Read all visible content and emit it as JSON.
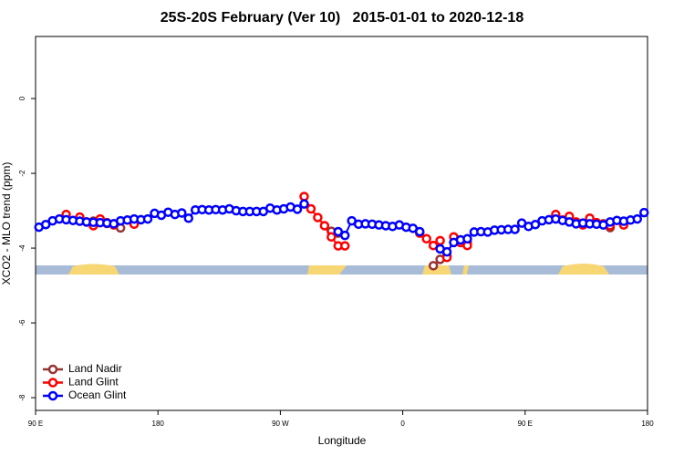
{
  "chart_data": {
    "type": "line",
    "title": "25S-20S February (Ver 10)   2015-01-01 to 2020-12-18",
    "x_label": "Longitude",
    "y_label": "XCO2 - MLO trend (ppm)",
    "xlim": [
      90,
      540
    ],
    "ylim": [
      -8.34,
      1.66
    ],
    "xticks": [
      {
        "value": 90,
        "label": "90 E"
      },
      180,
      {
        "value": 270,
        "label": "90 W"
      },
      {
        "value": 360,
        "label": "0"
      },
      {
        "value": 450,
        "label": "90 E"
      },
      {
        "value": 540,
        "label": "180"
      }
    ],
    "yticks": [
      0,
      -2,
      -4,
      -6,
      -8
    ],
    "legend": "lower left",
    "x": [
      92.5,
      97.5,
      102.5,
      107.5,
      112.5,
      117.5,
      122.5,
      127.5,
      132.5,
      137.5,
      142.5,
      147.5,
      152.5,
      157.5,
      162.5,
      167.5,
      172.5,
      177.5,
      182.5,
      187.5,
      192.5,
      197.5,
      202.5,
      207.5,
      212.5,
      217.5,
      222.5,
      227.5,
      232.5,
      237.5,
      242.5,
      247.5,
      252.5,
      257.5,
      262.5,
      267.5,
      272.5,
      277.5,
      282.5,
      287.5,
      292.5,
      297.5,
      302.5,
      307.5,
      312.5,
      317.5,
      322.5,
      327.5,
      332.5,
      337.5,
      342.5,
      347.5,
      352.5,
      357.5,
      362.5,
      367.5,
      372.5,
      377.5,
      382.5,
      387.5,
      392.5,
      397.5,
      402.5,
      407.5,
      412.5,
      417.5,
      422.5,
      427.5,
      432.5,
      437.5,
      442.5,
      447.5,
      452.5,
      457.5,
      462.5,
      467.5,
      472.5,
      477.5,
      482.5,
      487.5,
      492.5,
      497.5,
      502.5,
      507.5,
      512.5,
      517.5,
      522.5,
      527.5,
      532.5,
      537.5
    ],
    "series": [
      {
        "name": "Land Nadir",
        "color": "#993333",
        "values": [
          null,
          null,
          null,
          null,
          null,
          null,
          null,
          null,
          -3.28,
          -3.3,
          -3.34,
          -3.35,
          -3.46,
          null,
          null,
          null,
          null,
          null,
          null,
          null,
          null,
          null,
          null,
          null,
          null,
          null,
          null,
          null,
          null,
          null,
          null,
          null,
          null,
          null,
          null,
          null,
          null,
          null,
          null,
          null,
          null,
          null,
          null,
          -3.55,
          -3.6,
          null,
          null,
          null,
          null,
          null,
          null,
          null,
          null,
          null,
          null,
          null,
          null,
          null,
          -4.47,
          -4.3,
          -4.2,
          null,
          -3.78,
          -3.85,
          null,
          null,
          null,
          null,
          null,
          null,
          null,
          null,
          null,
          null,
          null,
          null,
          null,
          null,
          null,
          null,
          null,
          null,
          null,
          -3.35,
          -3.45,
          null,
          null,
          null,
          null,
          null
        ]
      },
      {
        "name": "Land Glint",
        "color": "#ff0000",
        "values": [
          null,
          null,
          null,
          null,
          -3.1,
          null,
          -3.17,
          -3.3,
          -3.4,
          -3.22,
          -3.32,
          -3.38,
          null,
          null,
          -3.36,
          null,
          null,
          null,
          null,
          null,
          null,
          null,
          null,
          null,
          null,
          null,
          null,
          null,
          null,
          null,
          null,
          null,
          null,
          null,
          null,
          null,
          null,
          null,
          null,
          -2.62,
          -2.95,
          -3.18,
          -3.4,
          -3.7,
          -3.94,
          -3.94,
          null,
          null,
          null,
          null,
          null,
          null,
          null,
          null,
          null,
          null,
          -3.6,
          -3.75,
          -3.93,
          -3.8,
          -4.25,
          -3.7,
          -3.85,
          -3.93,
          null,
          null,
          null,
          null,
          null,
          null,
          null,
          null,
          null,
          null,
          null,
          null,
          -3.1,
          -3.25,
          -3.15,
          -3.3,
          -3.38,
          -3.2,
          -3.32,
          -3.36,
          -3.4,
          null,
          -3.38,
          null,
          null,
          null
        ]
      },
      {
        "name": "Ocean Glint",
        "color": "#0000ff",
        "values": [
          -3.44,
          -3.37,
          -3.27,
          -3.22,
          -3.24,
          -3.26,
          -3.28,
          -3.3,
          -3.31,
          -3.32,
          -3.33,
          -3.35,
          -3.27,
          -3.25,
          -3.22,
          -3.24,
          -3.22,
          -3.07,
          -3.12,
          -3.04,
          -3.1,
          -3.06,
          -3.2,
          -2.98,
          -2.97,
          -2.98,
          -2.97,
          -2.98,
          -2.95,
          -3.0,
          -3.02,
          -3.02,
          -3.02,
          -3.02,
          -2.93,
          -2.98,
          -2.95,
          -2.9,
          -2.96,
          -2.82,
          null,
          null,
          null,
          null,
          -3.56,
          -3.66,
          -3.27,
          -3.36,
          -3.35,
          -3.36,
          -3.38,
          -3.4,
          -3.42,
          -3.38,
          -3.44,
          -3.47,
          -3.56,
          null,
          null,
          -4.02,
          -4.1,
          -3.85,
          -3.78,
          -3.75,
          -3.57,
          -3.56,
          -3.57,
          -3.52,
          -3.51,
          -3.5,
          -3.5,
          -3.33,
          -3.42,
          -3.37,
          -3.27,
          -3.24,
          -3.22,
          -3.26,
          -3.3,
          -3.35,
          -3.33,
          -3.35,
          -3.36,
          -3.38,
          -3.3,
          -3.26,
          -3.28,
          -3.25,
          -3.22,
          -3.05
        ]
      }
    ]
  }
}
